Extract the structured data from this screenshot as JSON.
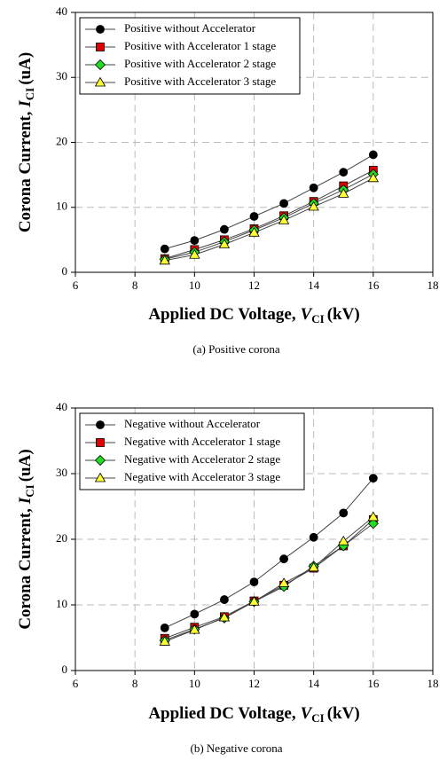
{
  "chart_data": [
    {
      "type": "line",
      "x": [
        9,
        10,
        11,
        12,
        13,
        14,
        15,
        16
      ],
      "series": [
        {
          "name": "Positive without Accelerator",
          "color": "#000000",
          "marker": "circle",
          "values": [
            3.6,
            4.9,
            6.6,
            8.6,
            10.6,
            13.0,
            15.4,
            18.1
          ]
        },
        {
          "name": "Positive with Accelerator 1 stage",
          "color": "#e00000",
          "marker": "square",
          "values": [
            2.1,
            3.5,
            5.0,
            6.7,
            8.7,
            10.9,
            13.3,
            15.7
          ]
        },
        {
          "name": "Positive with Accelerator 2 stage",
          "color": "#22dd22",
          "marker": "diamond",
          "values": [
            2.0,
            3.1,
            4.7,
            6.5,
            8.4,
            10.6,
            12.7,
            15.1
          ]
        },
        {
          "name": "Positive with Accelerator 3 stage",
          "color": "#ffff33",
          "marker": "triangle",
          "values": [
            1.8,
            2.7,
            4.3,
            6.1,
            8.0,
            10.1,
            12.1,
            14.5
          ]
        }
      ],
      "xlim": [
        6,
        18
      ],
      "xticks": [
        6,
        8,
        10,
        12,
        14,
        16,
        18
      ],
      "ylim": [
        0,
        40
      ],
      "yticks": [
        0,
        10,
        20,
        30,
        40
      ],
      "x_label": {
        "text": "Applied DC Voltage,",
        "symbol": "V",
        "sub": "CI",
        "unit": "(kV)"
      },
      "y_label": {
        "text": "Corona Current,",
        "symbol": "I",
        "sub": "CI",
        "unit": "(uA)"
      },
      "caption": "(a)  Positive corona",
      "grid": true,
      "legend": "upper left"
    },
    {
      "type": "line",
      "x": [
        9,
        10,
        11,
        12,
        13,
        14,
        15,
        16
      ],
      "series": [
        {
          "name": "Negative without Accelerator",
          "color": "#000000",
          "marker": "circle",
          "values": [
            6.5,
            8.6,
            10.8,
            13.5,
            17.0,
            20.3,
            24.0,
            29.3
          ]
        },
        {
          "name": "Negative with Accelerator 1 stage",
          "color": "#e00000",
          "marker": "square",
          "values": [
            4.9,
            6.6,
            8.2,
            10.6,
            13.0,
            15.6,
            19.0,
            23.0
          ]
        },
        {
          "name": "Negative with Accelerator 2 stage",
          "color": "#22dd22",
          "marker": "diamond",
          "values": [
            4.6,
            6.3,
            8.0,
            10.5,
            12.8,
            15.9,
            19.0,
            22.4
          ]
        },
        {
          "name": "Negative with Accelerator 3 stage",
          "color": "#ffff33",
          "marker": "triangle",
          "values": [
            4.4,
            6.2,
            8.1,
            10.5,
            13.3,
            15.7,
            19.7,
            23.4
          ]
        }
      ],
      "xlim": [
        6,
        18
      ],
      "xticks": [
        6,
        8,
        10,
        12,
        14,
        16,
        18
      ],
      "ylim": [
        0,
        40
      ],
      "yticks": [
        0,
        10,
        20,
        30,
        40
      ],
      "x_label": {
        "text": "Applied DC Voltage,",
        "symbol": "V",
        "sub": "CI",
        "unit": "(kV)"
      },
      "y_label": {
        "text": "Corona Current,",
        "symbol": "I",
        "sub": "CI",
        "unit": "(uA)"
      },
      "caption": "(b)  Negative corona",
      "grid": true,
      "legend": "upper left"
    }
  ]
}
